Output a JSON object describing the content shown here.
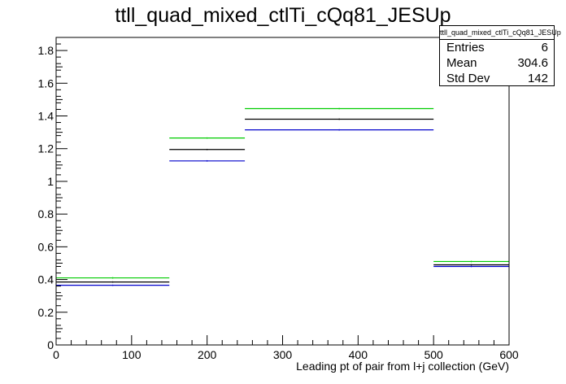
{
  "title": "ttll_quad_mixed_ctlTi_cQq81_JESUp",
  "stats": {
    "name": "ttll_quad_mixed_ctlTi_cQq81_JESUp",
    "rows": [
      {
        "label": "Entries",
        "value": "6"
      },
      {
        "label": "Mean",
        "value": "304.6"
      },
      {
        "label": "Std Dev",
        "value": "142"
      }
    ]
  },
  "chart_data": {
    "type": "histogram",
    "title": "ttll_quad_mixed_ctlTi_cQq81_JESUp",
    "xlabel": "Leading pt of pair from l+j collection (GeV)",
    "ylabel": "",
    "xlim": [
      0,
      600
    ],
    "ylim": [
      0,
      1.88
    ],
    "xticks": [
      0,
      100,
      200,
      300,
      400,
      500,
      600
    ],
    "yticks": [
      0,
      0.2,
      0.4,
      0.6,
      0.8,
      1,
      1.2,
      1.4,
      1.6,
      1.8
    ],
    "bin_edges": [
      0,
      150,
      250,
      500,
      600
    ],
    "series": [
      {
        "color": "#00cc00",
        "values": [
          0.41,
          1.265,
          1.445,
          0.51
        ]
      },
      {
        "color": "#000000",
        "values": [
          0.385,
          1.195,
          1.38,
          0.49
        ]
      },
      {
        "color": "#0000cc",
        "values": [
          0.365,
          1.125,
          1.315,
          0.48
        ]
      }
    ]
  }
}
